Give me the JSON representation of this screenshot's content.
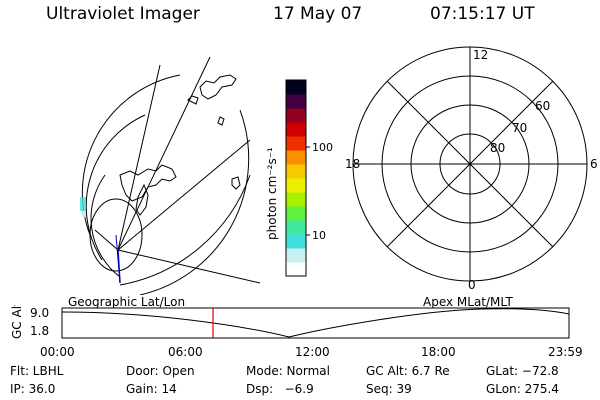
{
  "header": {
    "title": "Ultraviolet Imager",
    "date": "17 May 07",
    "time": "07:15:17 UT"
  },
  "colorbar": {
    "unit_label": "photon cm⁻²s⁻¹",
    "ticks": [
      "100",
      "10"
    ],
    "colors": [
      "#ffffff",
      "#c8f0f0",
      "#40e0e0",
      "#40e8a0",
      "#60f040",
      "#a8f000",
      "#e8f000",
      "#f8c800",
      "#f89000",
      "#f03000",
      "#d00000",
      "#900020",
      "#400040",
      "#000020"
    ]
  },
  "polar": {
    "clock_labels": {
      "top": "12",
      "bottom": "0",
      "left": "18",
      "right": "6"
    },
    "lat_labels": [
      "60",
      "70",
      "80"
    ]
  },
  "panel_labels": {
    "left": "Geographic Lat/Lon",
    "right": "Apex MLat/MLT"
  },
  "timeline": {
    "ylabel": "GC Alt",
    "y_ticks": [
      "9.0",
      "1.8"
    ],
    "x_ticks": [
      "00:00",
      "06:00",
      "12:00",
      "18:00",
      "23:59"
    ],
    "marker_time": "07:15"
  },
  "footer": {
    "row1": {
      "flt": "Flt: LBHL",
      "door": "Door: Open",
      "mode": "Mode: Normal",
      "gcalt": "GC Alt: 6.7 Re",
      "glat": "GLat: −72.8"
    },
    "row2": {
      "ip": "IP: 36.0",
      "gain": "Gain: 14",
      "dsp": "Dsp:   −6.9",
      "seq": "Seq: 39",
      "glon": "GLon: 275.4"
    }
  }
}
